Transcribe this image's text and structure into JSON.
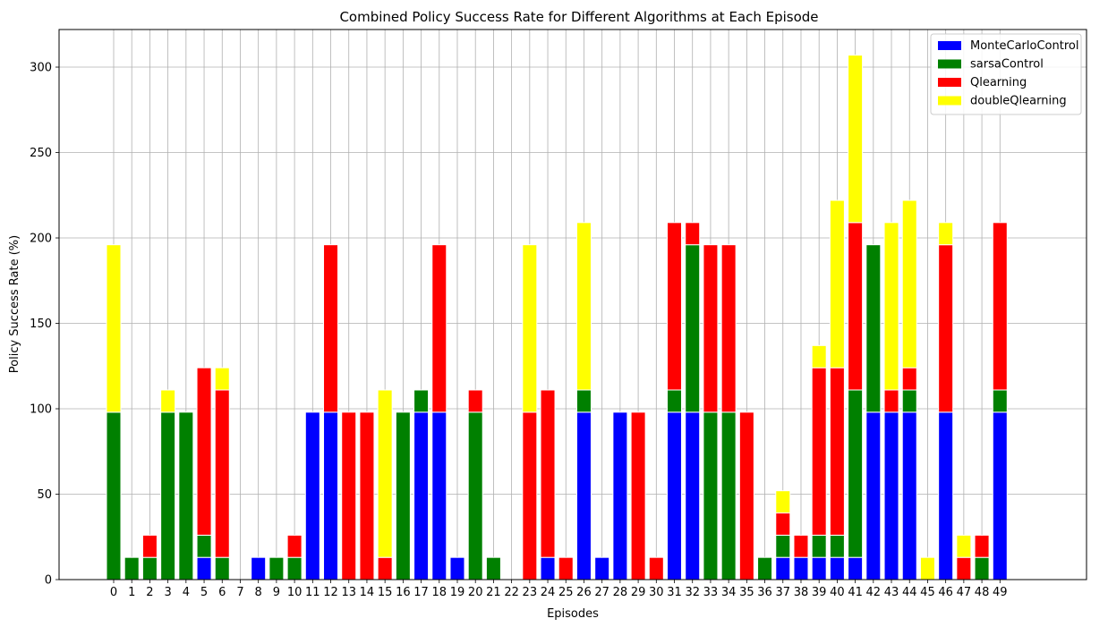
{
  "chart_data": {
    "type": "bar",
    "stacked": true,
    "title": "Combined Policy Success Rate for Different Algorithms at Each Episode",
    "xlabel": "Episodes",
    "ylabel": "Policy Success Rate (%)",
    "ylim": [
      0,
      322
    ],
    "yticks": [
      0,
      50,
      100,
      150,
      200,
      250,
      300
    ],
    "grid": true,
    "legend_position": "top-right",
    "categories": [
      "0",
      "1",
      "2",
      "3",
      "4",
      "5",
      "6",
      "7",
      "8",
      "9",
      "10",
      "11",
      "12",
      "13",
      "14",
      "15",
      "16",
      "17",
      "18",
      "19",
      "20",
      "21",
      "22",
      "23",
      "24",
      "25",
      "26",
      "27",
      "28",
      "29",
      "30",
      "31",
      "32",
      "33",
      "34",
      "35",
      "36",
      "37",
      "38",
      "39",
      "40",
      "41",
      "42",
      "43",
      "44",
      "45",
      "46",
      "47",
      "48",
      "49"
    ],
    "series": [
      {
        "name": "MonteCarloControl",
        "color": "#0000ff",
        "values": [
          0,
          0,
          0,
          0,
          0,
          13,
          0,
          0,
          13,
          0,
          0,
          98,
          98,
          0,
          0,
          0,
          0,
          98,
          98,
          13,
          0,
          0,
          0,
          0,
          13,
          0,
          98,
          13,
          98,
          0,
          0,
          98,
          98,
          0,
          0,
          0,
          0,
          13,
          13,
          13,
          13,
          13,
          98,
          98,
          98,
          0,
          98,
          0,
          0,
          98
        ]
      },
      {
        "name": "sarsaControl",
        "color": "#008000",
        "values": [
          98,
          13,
          13,
          98,
          98,
          13,
          13,
          0,
          0,
          13,
          13,
          0,
          0,
          0,
          0,
          0,
          98,
          13,
          0,
          0,
          98,
          13,
          0,
          0,
          0,
          0,
          13,
          0,
          0,
          0,
          0,
          13,
          98,
          98,
          98,
          0,
          13,
          13,
          0,
          13,
          13,
          98,
          98,
          0,
          13,
          0,
          0,
          0,
          13,
          13
        ]
      },
      {
        "name": "Qlearning",
        "color": "#ff0000",
        "values": [
          0,
          0,
          13,
          0,
          0,
          98,
          98,
          0,
          0,
          0,
          13,
          0,
          98,
          98,
          98,
          13,
          0,
          0,
          98,
          0,
          13,
          0,
          0,
          98,
          98,
          13,
          0,
          0,
          0,
          98,
          13,
          98,
          13,
          98,
          98,
          98,
          0,
          13,
          13,
          98,
          98,
          98,
          0,
          13,
          13,
          0,
          98,
          13,
          13,
          98
        ]
      },
      {
        "name": "doubleQlearning",
        "color": "#ffff00",
        "values": [
          98,
          0,
          0,
          13,
          0,
          0,
          13,
          0,
          0,
          0,
          0,
          0,
          0,
          0,
          0,
          98,
          0,
          0,
          0,
          0,
          0,
          0,
          0,
          98,
          0,
          0,
          98,
          0,
          0,
          0,
          0,
          0,
          0,
          0,
          0,
          0,
          0,
          13,
          0,
          13,
          98,
          98,
          0,
          98,
          98,
          13,
          13,
          13,
          0,
          0
        ]
      }
    ]
  }
}
